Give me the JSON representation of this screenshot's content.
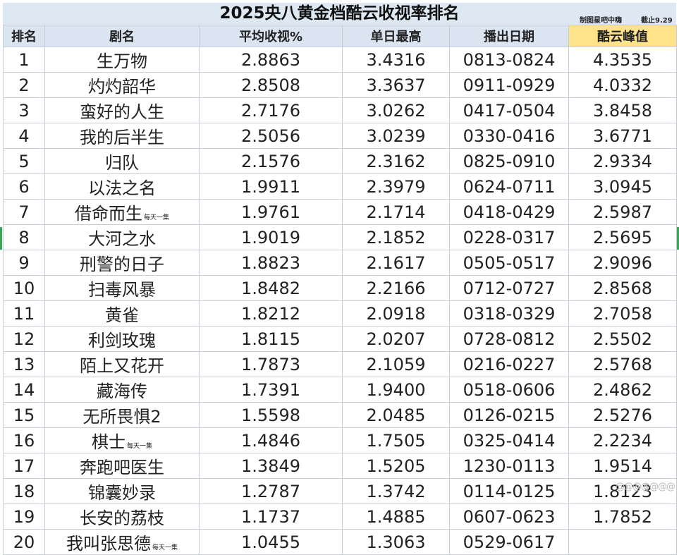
{
  "title": "2025央八黄金档酷云收视率排名",
  "credit": {
    "maker": "制图星吧中嗨",
    "cutoff": "截止9.29"
  },
  "headers": [
    "排名",
    "剧名",
    "平均收视%",
    "单日最高",
    "播出日期",
    "酷云峰值"
  ],
  "rows": [
    {
      "rank": "1",
      "name": "生万物",
      "note": "",
      "avg": "2.8863",
      "high": "3.4316",
      "date": "0813-0824",
      "peak": "4.3535"
    },
    {
      "rank": "2",
      "name": "灼灼韶华",
      "note": "",
      "avg": "2.8508",
      "high": "3.3637",
      "date": "0911-0929",
      "peak": "4.0332"
    },
    {
      "rank": "3",
      "name": "蛮好的人生",
      "note": "",
      "avg": "2.7176",
      "high": "3.0262",
      "date": "0417-0504",
      "peak": "3.8458"
    },
    {
      "rank": "4",
      "name": "我的后半生",
      "note": "",
      "avg": "2.5056",
      "high": "3.0239",
      "date": "0330-0416",
      "peak": "3.6771"
    },
    {
      "rank": "5",
      "name": "归队",
      "note": "",
      "avg": "2.1576",
      "high": "2.3162",
      "date": "0825-0910",
      "peak": "2.9334"
    },
    {
      "rank": "6",
      "name": "以法之名",
      "note": "",
      "avg": "1.9911",
      "high": "2.3979",
      "date": "0624-0711",
      "peak": "3.0945"
    },
    {
      "rank": "7",
      "name": "借命而生",
      "note": "每天一集",
      "avg": "1.9761",
      "high": "2.1714",
      "date": "0418-0429",
      "peak": "2.5987"
    },
    {
      "rank": "8",
      "name": "大河之水",
      "note": "",
      "avg": "1.9019",
      "high": "2.1852",
      "date": "0228-0317",
      "peak": "2.5695"
    },
    {
      "rank": "9",
      "name": "刑警的日子",
      "note": "",
      "avg": "1.8823",
      "high": "2.1617",
      "date": "0505-0517",
      "peak": "2.9096"
    },
    {
      "rank": "10",
      "name": "扫毒风暴",
      "note": "",
      "avg": "1.8482",
      "high": "2.2166",
      "date": "0712-0727",
      "peak": "2.8568"
    },
    {
      "rank": "11",
      "name": "黄雀",
      "note": "",
      "avg": "1.8212",
      "high": "2.0918",
      "date": "0318-0329",
      "peak": "2.7058"
    },
    {
      "rank": "12",
      "name": "利剑玫瑰",
      "note": "",
      "avg": "1.8115",
      "high": "2.0207",
      "date": "0728-0812",
      "peak": "2.5502"
    },
    {
      "rank": "13",
      "name": "陌上又花开",
      "note": "",
      "avg": "1.7873",
      "high": "2.1059",
      "date": "0216-0227",
      "peak": "2.5768"
    },
    {
      "rank": "14",
      "name": "藏海传",
      "note": "",
      "avg": "1.7391",
      "high": "1.9400",
      "date": "0518-0606",
      "peak": "2.4862"
    },
    {
      "rank": "15",
      "name": "无所畏惧2",
      "note": "",
      "avg": "1.5598",
      "high": "2.0485",
      "date": "0126-0215",
      "peak": "2.5276"
    },
    {
      "rank": "16",
      "name": "棋士",
      "note": "每天一集",
      "avg": "1.4846",
      "high": "1.7505",
      "date": "0325-0414",
      "peak": "2.2234"
    },
    {
      "rank": "17",
      "name": "奔跑吧医生",
      "note": "",
      "avg": "1.3849",
      "high": "1.5205",
      "date": "1230-0113",
      "peak": "1.9514"
    },
    {
      "rank": "18",
      "name": "锦囊妙录",
      "note": "",
      "avg": "1.2787",
      "high": "1.3742",
      "date": "0114-0125",
      "peak": "1.8123"
    },
    {
      "rank": "19",
      "name": "长安的荔枝",
      "note": "",
      "avg": "1.1737",
      "high": "1.4885",
      "date": "0607-0623",
      "peak": "1.7852"
    },
    {
      "rank": "20",
      "name": "我叫张思德",
      "note": "每天一集",
      "avg": "1.0455",
      "high": "1.3063",
      "date": "0529-0617",
      "peak": ""
    }
  ],
  "watermark": "@@@@@@@"
}
